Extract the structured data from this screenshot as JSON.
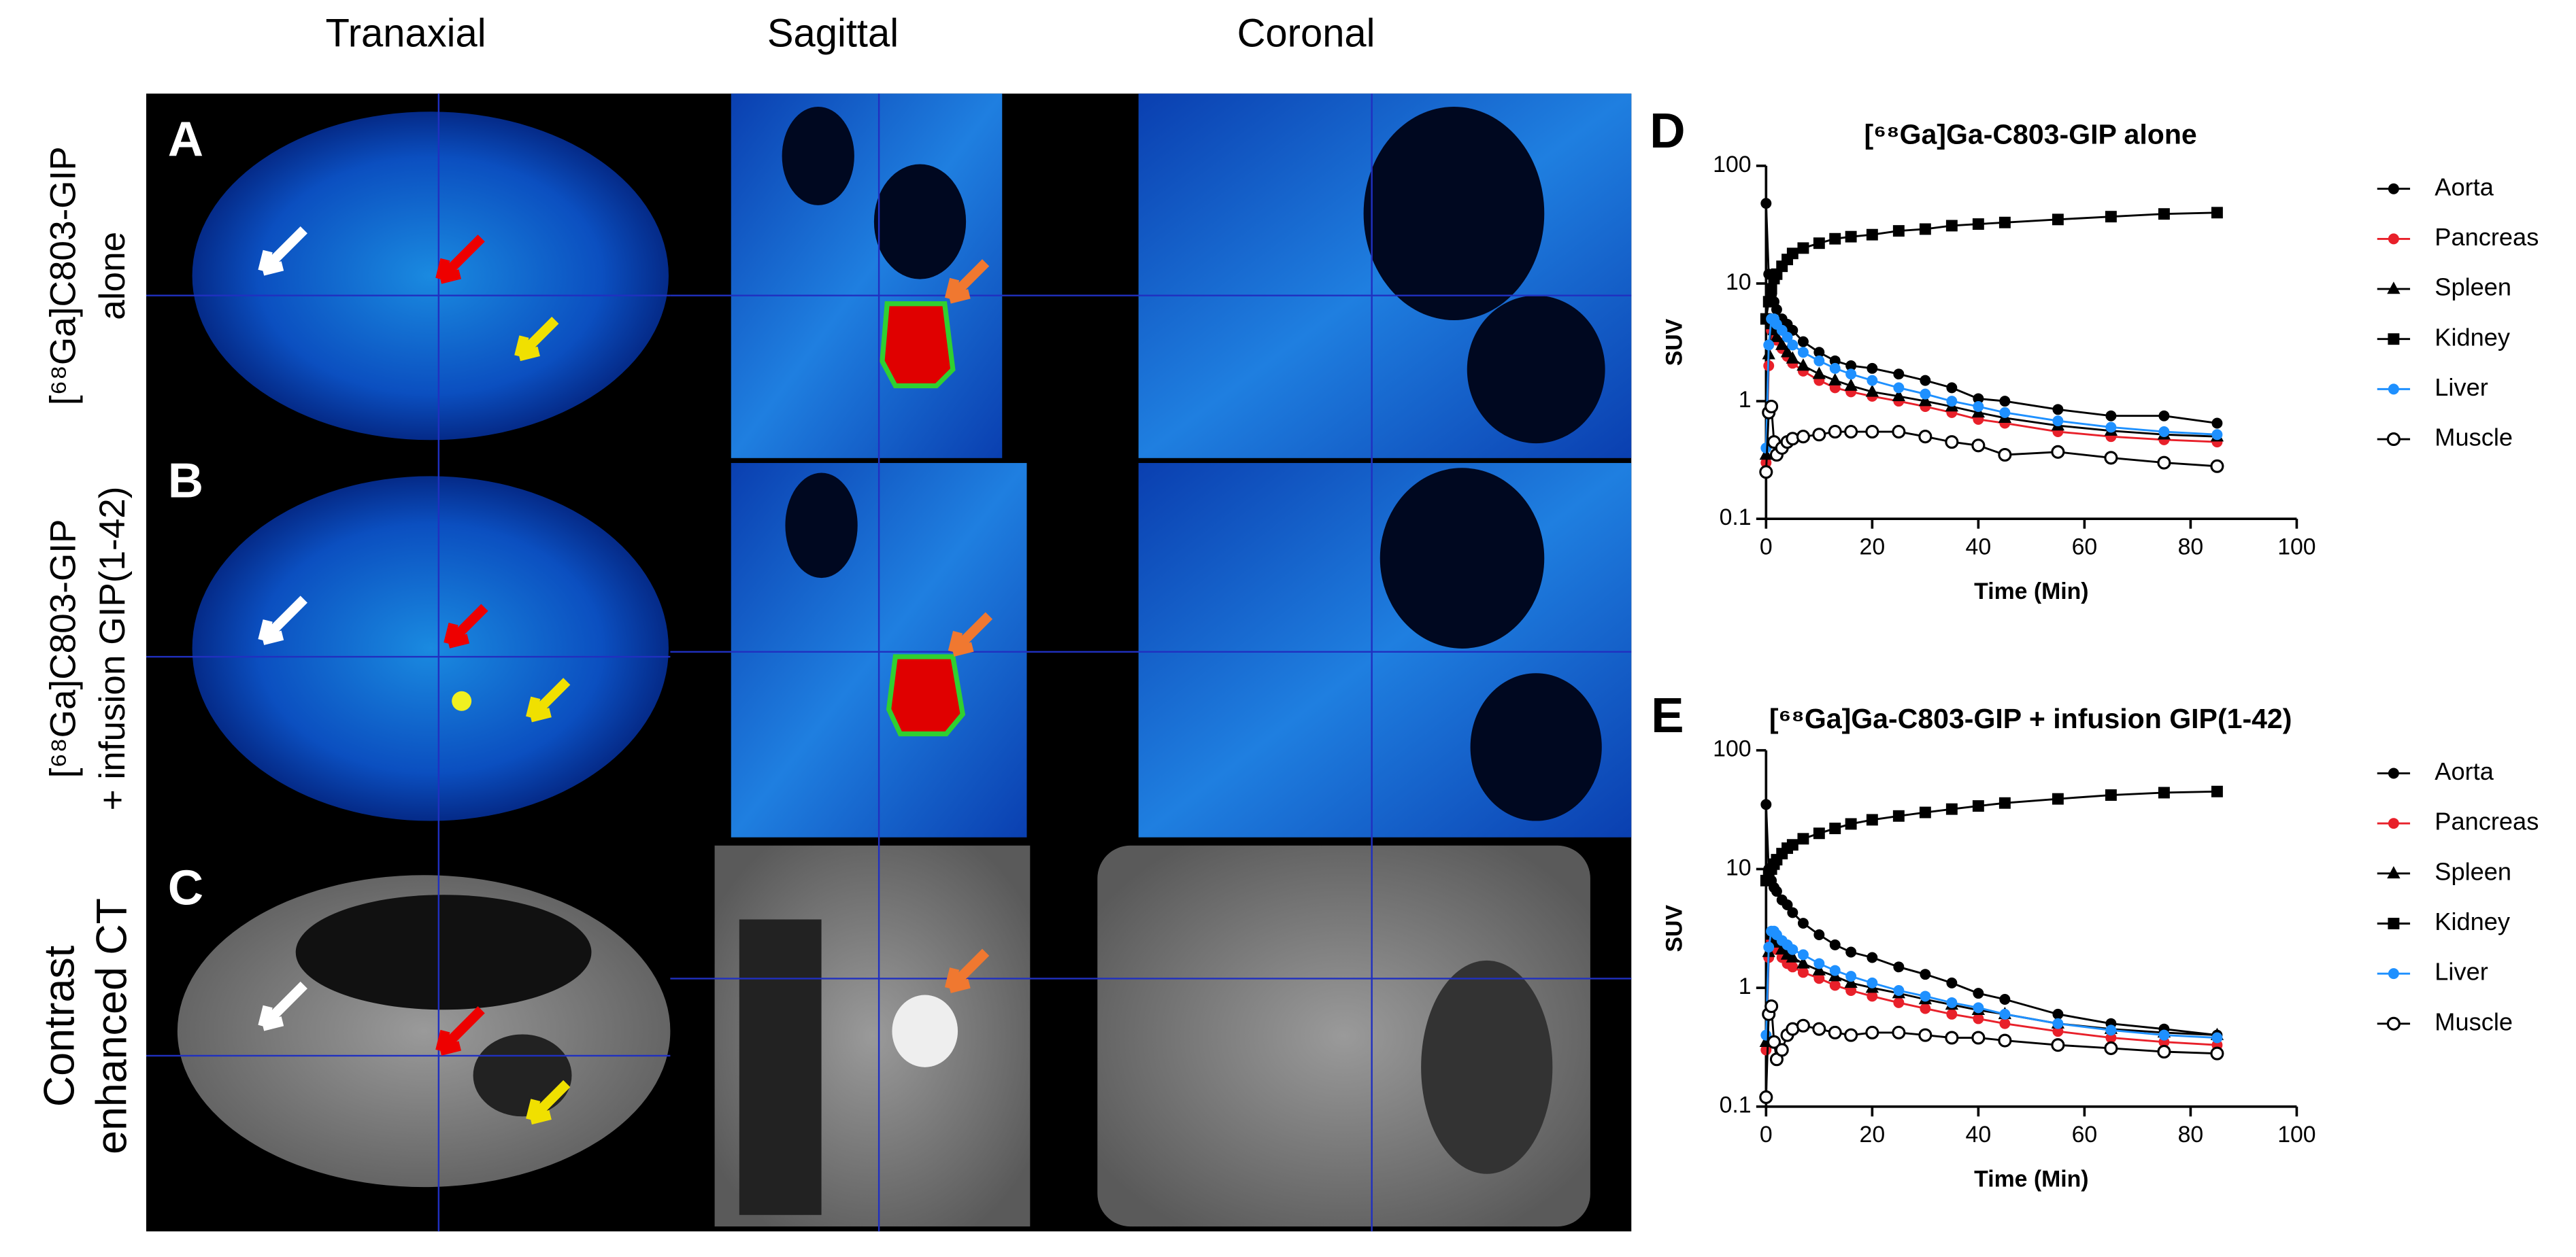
{
  "columns": [
    "Tranaxial",
    "Sagittal",
    "Coronal"
  ],
  "rows": [
    {
      "panel": "A",
      "label": [
        "[⁶⁸Ga]C803-GIP",
        "alone"
      ]
    },
    {
      "panel": "B",
      "label": [
        "[⁶⁸Ga]C803-GIP",
        "+ infusion GIP(1-42)"
      ]
    },
    {
      "panel": "C",
      "label": [
        "Contrast",
        "enhanced CT"
      ]
    }
  ],
  "chart_data": [
    {
      "type": "line",
      "panel": "D",
      "title": "[⁶⁸Ga]Ga-C803-GIP alone",
      "xlabel": "Time (Min)",
      "ylabel": "SUV",
      "x": [
        0,
        0.5,
        1,
        1.5,
        2,
        3,
        4,
        5,
        7,
        10,
        13,
        16,
        20,
        25,
        30,
        35,
        40,
        45,
        55,
        65,
        75,
        85
      ],
      "xlim": [
        0,
        100
      ],
      "xticks": [
        0,
        20,
        40,
        60,
        80,
        100
      ],
      "ylim": [
        0.1,
        100
      ],
      "yticks": [
        0.1,
        1,
        10,
        100
      ],
      "log_y": true,
      "legend": "right",
      "series": [
        {
          "name": "Aorta",
          "color": "#000000",
          "marker": "circle",
          "values": [
            48,
            12,
            8,
            7,
            6,
            5,
            4.5,
            4,
            3.2,
            2.6,
            2.2,
            2.0,
            1.9,
            1.7,
            1.5,
            1.3,
            1.05,
            1.0,
            0.85,
            0.75,
            0.75,
            0.65
          ]
        },
        {
          "name": "Pancreas",
          "color": "#e8202a",
          "marker": "circle",
          "values": [
            0.3,
            2,
            4,
            3.8,
            3.3,
            2.8,
            2.4,
            2.1,
            1.8,
            1.5,
            1.3,
            1.2,
            1.1,
            1.0,
            0.9,
            0.8,
            0.7,
            0.65,
            0.55,
            0.5,
            0.47,
            0.45
          ]
        },
        {
          "name": "Spleen",
          "color": "#000000",
          "marker": "triangle",
          "values": [
            0.35,
            2.5,
            4.5,
            4,
            3.5,
            3,
            2.6,
            2.3,
            2,
            1.7,
            1.5,
            1.35,
            1.2,
            1.1,
            1,
            0.9,
            0.8,
            0.72,
            0.62,
            0.56,
            0.52,
            0.5
          ]
        },
        {
          "name": "Kidney",
          "color": "#000000",
          "marker": "square",
          "values": [
            5,
            7,
            9,
            11,
            12,
            14,
            16,
            18,
            20,
            22,
            24,
            25,
            26,
            28,
            29,
            31,
            32,
            33,
            35,
            37,
            39,
            40
          ]
        },
        {
          "name": "Liver",
          "color": "#1e90ff",
          "marker": "circle",
          "values": [
            0.4,
            3,
            5,
            5,
            4.5,
            4,
            3.5,
            3,
            2.6,
            2.2,
            1.9,
            1.7,
            1.5,
            1.3,
            1.15,
            1.0,
            0.9,
            0.8,
            0.68,
            0.6,
            0.55,
            0.52
          ]
        },
        {
          "name": "Muscle",
          "color": "#000000",
          "marker": "open-circle",
          "values": [
            0.25,
            0.8,
            0.9,
            0.45,
            0.35,
            0.4,
            0.45,
            0.48,
            0.5,
            0.52,
            0.55,
            0.55,
            0.55,
            0.55,
            0.5,
            0.45,
            0.42,
            0.35,
            0.37,
            0.33,
            0.3,
            0.28
          ]
        }
      ]
    },
    {
      "type": "line",
      "panel": "E",
      "title": "[⁶⁸Ga]Ga-C803-GIP + infusion GIP(1-42)",
      "xlabel": "Time (Min)",
      "ylabel": "SUV",
      "x": [
        0,
        0.5,
        1,
        1.5,
        2,
        3,
        4,
        5,
        7,
        10,
        13,
        16,
        20,
        25,
        30,
        35,
        40,
        45,
        55,
        65,
        75,
        85
      ],
      "xlim": [
        0,
        100
      ],
      "xticks": [
        0,
        20,
        40,
        60,
        80,
        100
      ],
      "ylim": [
        0.1,
        100
      ],
      "yticks": [
        0.1,
        1,
        10,
        100
      ],
      "log_y": true,
      "legend": "right",
      "series": [
        {
          "name": "Aorta",
          "color": "#000000",
          "marker": "circle",
          "values": [
            35,
            10,
            8,
            7,
            6.5,
            5.5,
            5,
            4.3,
            3.5,
            2.8,
            2.3,
            2.0,
            1.8,
            1.5,
            1.3,
            1.1,
            0.9,
            0.8,
            0.6,
            0.5,
            0.45,
            0.4
          ]
        },
        {
          "name": "Pancreas",
          "color": "#e8202a",
          "marker": "circle",
          "values": [
            0.3,
            1.8,
            2.5,
            2.3,
            2.1,
            1.8,
            1.6,
            1.5,
            1.35,
            1.2,
            1.05,
            0.95,
            0.85,
            0.75,
            0.67,
            0.6,
            0.55,
            0.5,
            0.43,
            0.38,
            0.35,
            0.33
          ]
        },
        {
          "name": "Spleen",
          "color": "#000000",
          "marker": "triangle",
          "values": [
            0.35,
            2,
            2.8,
            2.6,
            2.4,
            2.1,
            1.9,
            1.8,
            1.6,
            1.4,
            1.25,
            1.1,
            1.0,
            0.9,
            0.8,
            0.72,
            0.65,
            0.6,
            0.5,
            0.45,
            0.42,
            0.4
          ]
        },
        {
          "name": "Kidney",
          "color": "#000000",
          "marker": "square",
          "values": [
            8,
            9,
            10,
            11,
            12,
            13.5,
            15,
            16,
            18,
            20,
            22,
            24,
            26,
            28,
            30,
            32,
            34,
            36,
            39,
            42,
            44,
            45
          ]
        },
        {
          "name": "Liver",
          "color": "#1e90ff",
          "marker": "circle",
          "values": [
            0.4,
            2.2,
            3,
            3,
            2.8,
            2.5,
            2.3,
            2.1,
            1.9,
            1.6,
            1.4,
            1.25,
            1.1,
            0.95,
            0.85,
            0.75,
            0.68,
            0.6,
            0.5,
            0.44,
            0.4,
            0.38
          ]
        },
        {
          "name": "Muscle",
          "color": "#000000",
          "marker": "open-circle",
          "values": [
            0.12,
            0.6,
            0.7,
            0.35,
            0.25,
            0.3,
            0.4,
            0.45,
            0.48,
            0.45,
            0.42,
            0.4,
            0.42,
            0.42,
            0.4,
            0.38,
            0.38,
            0.36,
            0.33,
            0.31,
            0.29,
            0.28
          ]
        }
      ]
    }
  ]
}
